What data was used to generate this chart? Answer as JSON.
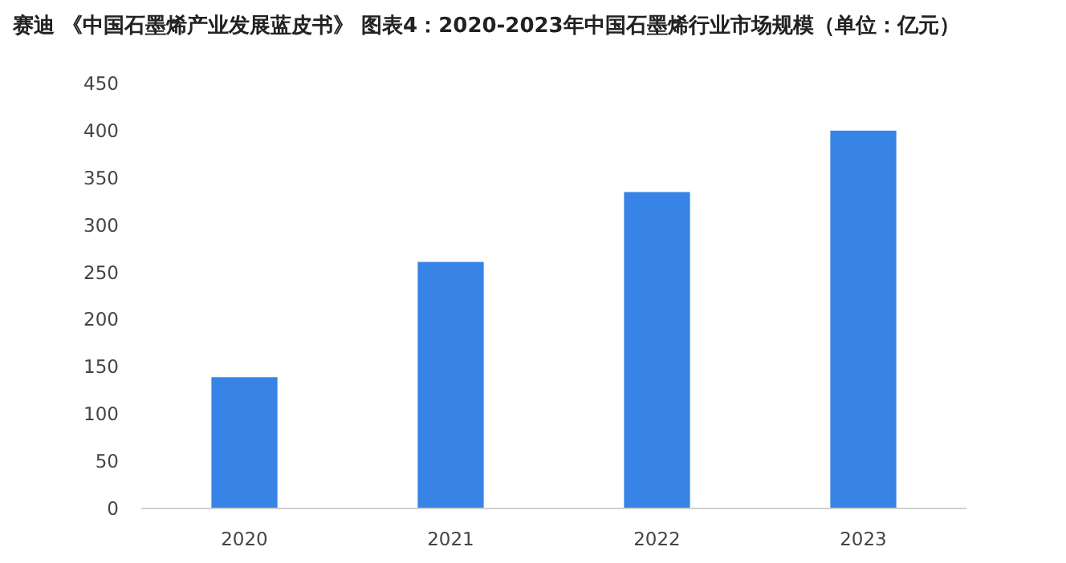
{
  "chart_data": {
    "type": "bar",
    "title": "赛迪 《中国石墨烯产业发展蓝皮书》 图表4：2020-2023年中国石墨烯行业市场规模（单位：亿元）",
    "categories": [
      "2020",
      "2021",
      "2022",
      "2023"
    ],
    "values": [
      139,
      261,
      335,
      400
    ],
    "color": "#3784e6",
    "ylim": [
      0,
      450
    ],
    "yticks": [
      0,
      50,
      100,
      150,
      200,
      250,
      300,
      350,
      400,
      450
    ],
    "grid": false
  }
}
